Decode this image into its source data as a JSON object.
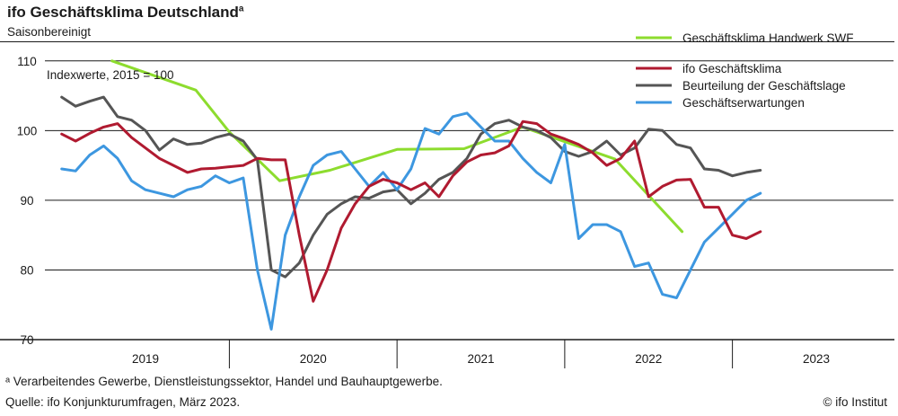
{
  "header": {
    "title": "ifo Geschäftsklima Deutschland",
    "title_sup": "a",
    "subtitle": "Saisonbereinigt"
  },
  "footer": {
    "note": "ᵃ Verarbeitendes Gewerbe, Dienstleistungssektor, Handel und Bauhauptgewerbe.",
    "source": "Quelle: ifo Konjunkturumfragen, März 2023.",
    "copyright": "© ifo Institut"
  },
  "chart_data": {
    "type": "line",
    "ylabel": "Indexwerte, 2015 = 100",
    "ylim": [
      70,
      111
    ],
    "yticks": [
      70,
      80,
      90,
      100,
      110
    ],
    "gridlines_y": [
      80,
      90,
      100,
      110
    ],
    "xlim": [
      2018.9,
      2023.8
    ],
    "year_labels": [
      {
        "label": "2019",
        "x": 2019.5
      },
      {
        "label": "2020",
        "x": 2020.5
      },
      {
        "label": "2021",
        "x": 2021.5
      },
      {
        "label": "2022",
        "x": 2022.5
      },
      {
        "label": "2023",
        "x": 2023.5
      }
    ],
    "year_boundaries": [
      2020,
      2021,
      2022,
      2023
    ],
    "legend": {
      "position": "top-right"
    },
    "series": [
      {
        "name": "Geschäftsklima Handwerk SWF",
        "color": "#8ddc2e",
        "x": [
          2019.3,
          2019.8,
          2020.0,
          2020.3,
          2020.6,
          2021.0,
          2021.4,
          2021.75,
          2022.3,
          2022.7
        ],
        "y": [
          110.0,
          105.8,
          99.8,
          92.8,
          94.3,
          97.3,
          97.4,
          100.5,
          95.9,
          85.5
        ]
      },
      {
        "name": "ifo Geschäftsklima",
        "color": "#b01a30",
        "x": [
          2019.0,
          2019.083,
          2019.167,
          2019.25,
          2019.333,
          2019.417,
          2019.5,
          2019.583,
          2019.667,
          2019.75,
          2019.833,
          2019.917,
          2020.0,
          2020.083,
          2020.167,
          2020.25,
          2020.333,
          2020.417,
          2020.5,
          2020.583,
          2020.667,
          2020.75,
          2020.833,
          2020.917,
          2021.0,
          2021.083,
          2021.167,
          2021.25,
          2021.333,
          2021.417,
          2021.5,
          2021.583,
          2021.667,
          2021.75,
          2021.833,
          2021.917,
          2022.0,
          2022.083,
          2022.167,
          2022.25,
          2022.333,
          2022.417,
          2022.5,
          2022.583,
          2022.667,
          2022.75,
          2022.833,
          2022.917,
          2023.0,
          2023.083,
          2023.167
        ],
        "y": [
          99.5,
          98.5,
          99.6,
          100.5,
          101.0,
          99.0,
          97.5,
          96.0,
          95.0,
          94.0,
          94.5,
          94.6,
          94.8,
          95.0,
          96.0,
          95.8,
          95.8,
          85.0,
          75.5,
          80.0,
          86.0,
          89.5,
          92.0,
          93.0,
          92.5,
          91.5,
          92.5,
          90.5,
          93.5,
          95.5,
          96.5,
          96.8,
          97.8,
          101.3,
          101.0,
          99.5,
          98.8,
          98.0,
          96.8,
          95.0,
          96.0,
          98.5,
          90.5,
          92.0,
          92.9,
          93.0,
          89.0,
          89.0,
          85.0,
          84.5,
          85.5
        ]
      },
      {
        "name": "Beurteilung der Geschäftslage",
        "color": "#555555",
        "x": [
          2019.0,
          2019.083,
          2019.167,
          2019.25,
          2019.333,
          2019.417,
          2019.5,
          2019.583,
          2019.667,
          2019.75,
          2019.833,
          2019.917,
          2020.0,
          2020.083,
          2020.167,
          2020.25,
          2020.333,
          2020.417,
          2020.5,
          2020.583,
          2020.667,
          2020.75,
          2020.833,
          2020.917,
          2021.0,
          2021.083,
          2021.167,
          2021.25,
          2021.333,
          2021.417,
          2021.5,
          2021.583,
          2021.667,
          2021.75,
          2021.833,
          2021.917,
          2022.0,
          2022.083,
          2022.167,
          2022.25,
          2022.333,
          2022.417,
          2022.5,
          2022.583,
          2022.667,
          2022.75,
          2022.833,
          2022.917,
          2023.0,
          2023.083,
          2023.167
        ],
        "y": [
          104.8,
          103.5,
          104.2,
          104.8,
          102.0,
          101.5,
          100.0,
          97.2,
          98.8,
          98.0,
          98.2,
          99.0,
          99.5,
          98.5,
          95.8,
          80.0,
          79.0,
          81.0,
          85.0,
          88.0,
          89.5,
          90.5,
          90.3,
          91.2,
          91.5,
          89.5,
          91.0,
          93.0,
          94.0,
          96.0,
          99.5,
          101.0,
          101.5,
          100.5,
          100.0,
          99.0,
          97.0,
          96.3,
          97.0,
          98.5,
          96.5,
          97.5,
          100.2,
          100.0,
          98.0,
          97.5,
          94.5,
          94.3,
          93.5,
          94.0,
          94.3
        ]
      },
      {
        "name": "Geschäftserwartungen",
        "color": "#3d97e0",
        "x": [
          2019.0,
          2019.083,
          2019.167,
          2019.25,
          2019.333,
          2019.417,
          2019.5,
          2019.583,
          2019.667,
          2019.75,
          2019.833,
          2019.917,
          2020.0,
          2020.083,
          2020.167,
          2020.25,
          2020.333,
          2020.417,
          2020.5,
          2020.583,
          2020.667,
          2020.75,
          2020.833,
          2020.917,
          2021.0,
          2021.083,
          2021.167,
          2021.25,
          2021.333,
          2021.417,
          2021.5,
          2021.583,
          2021.667,
          2021.75,
          2021.833,
          2021.917,
          2022.0,
          2022.083,
          2022.167,
          2022.25,
          2022.333,
          2022.417,
          2022.5,
          2022.583,
          2022.667,
          2022.75,
          2022.833,
          2022.917,
          2023.0,
          2023.083,
          2023.167
        ],
        "y": [
          94.5,
          94.2,
          96.5,
          97.8,
          96.0,
          92.8,
          91.5,
          91.0,
          90.5,
          91.5,
          92.0,
          93.5,
          92.5,
          93.2,
          80.0,
          71.5,
          85.0,
          90.5,
          95.0,
          96.5,
          97.0,
          94.5,
          92.0,
          94.0,
          91.5,
          94.5,
          100.3,
          99.5,
          102.0,
          102.5,
          100.5,
          98.5,
          98.5,
          96.0,
          94.0,
          92.5,
          98.0,
          84.5,
          86.5,
          86.5,
          85.5,
          80.5,
          81.0,
          76.5,
          76.0,
          80.0,
          84.0,
          86.0,
          88.0,
          90.0,
          91.0
        ]
      }
    ]
  }
}
